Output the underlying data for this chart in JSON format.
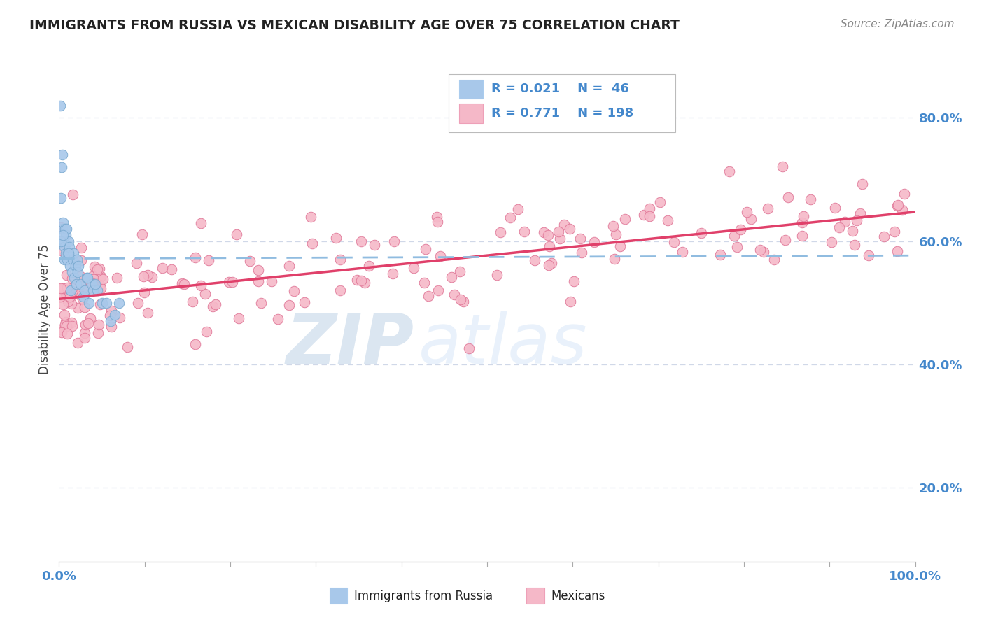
{
  "title": "IMMIGRANTS FROM RUSSIA VS MEXICAN DISABILITY AGE OVER 75 CORRELATION CHART",
  "source": "Source: ZipAtlas.com",
  "ylabel": "Disability Age Over 75",
  "right_ytick_labels": [
    "20.0%",
    "40.0%",
    "60.0%",
    "80.0%"
  ],
  "right_ytick_vals": [
    0.2,
    0.4,
    0.6,
    0.8
  ],
  "watermark_zip": "ZIP",
  "watermark_atlas": "atlas",
  "legend_r1": "R = 0.021",
  "legend_n1": "N =  46",
  "legend_r2": "R = 0.771",
  "legend_n2": "N = 198",
  "legend_label1": "Immigrants from Russia",
  "legend_label2": "Mexicans",
  "russia_color": "#a8c8ea",
  "russia_edge": "#7aaad0",
  "mexico_color": "#f5b8c8",
  "mexico_edge": "#e07898",
  "trend_russia_color": "#90bce0",
  "trend_mexico_color": "#e0406a",
  "title_color": "#222222",
  "axis_label_color": "#444444",
  "tick_color": "#4488cc",
  "source_color": "#888888",
  "background_color": "#ffffff",
  "grid_color": "#d0d8e8",
  "watermark_color_zip": "#b8d0e8",
  "watermark_color_atlas": "#c8ddf0",
  "ylim_min": 0.08,
  "ylim_max": 0.9,
  "xlim_min": 0.0,
  "xlim_max": 1.0
}
